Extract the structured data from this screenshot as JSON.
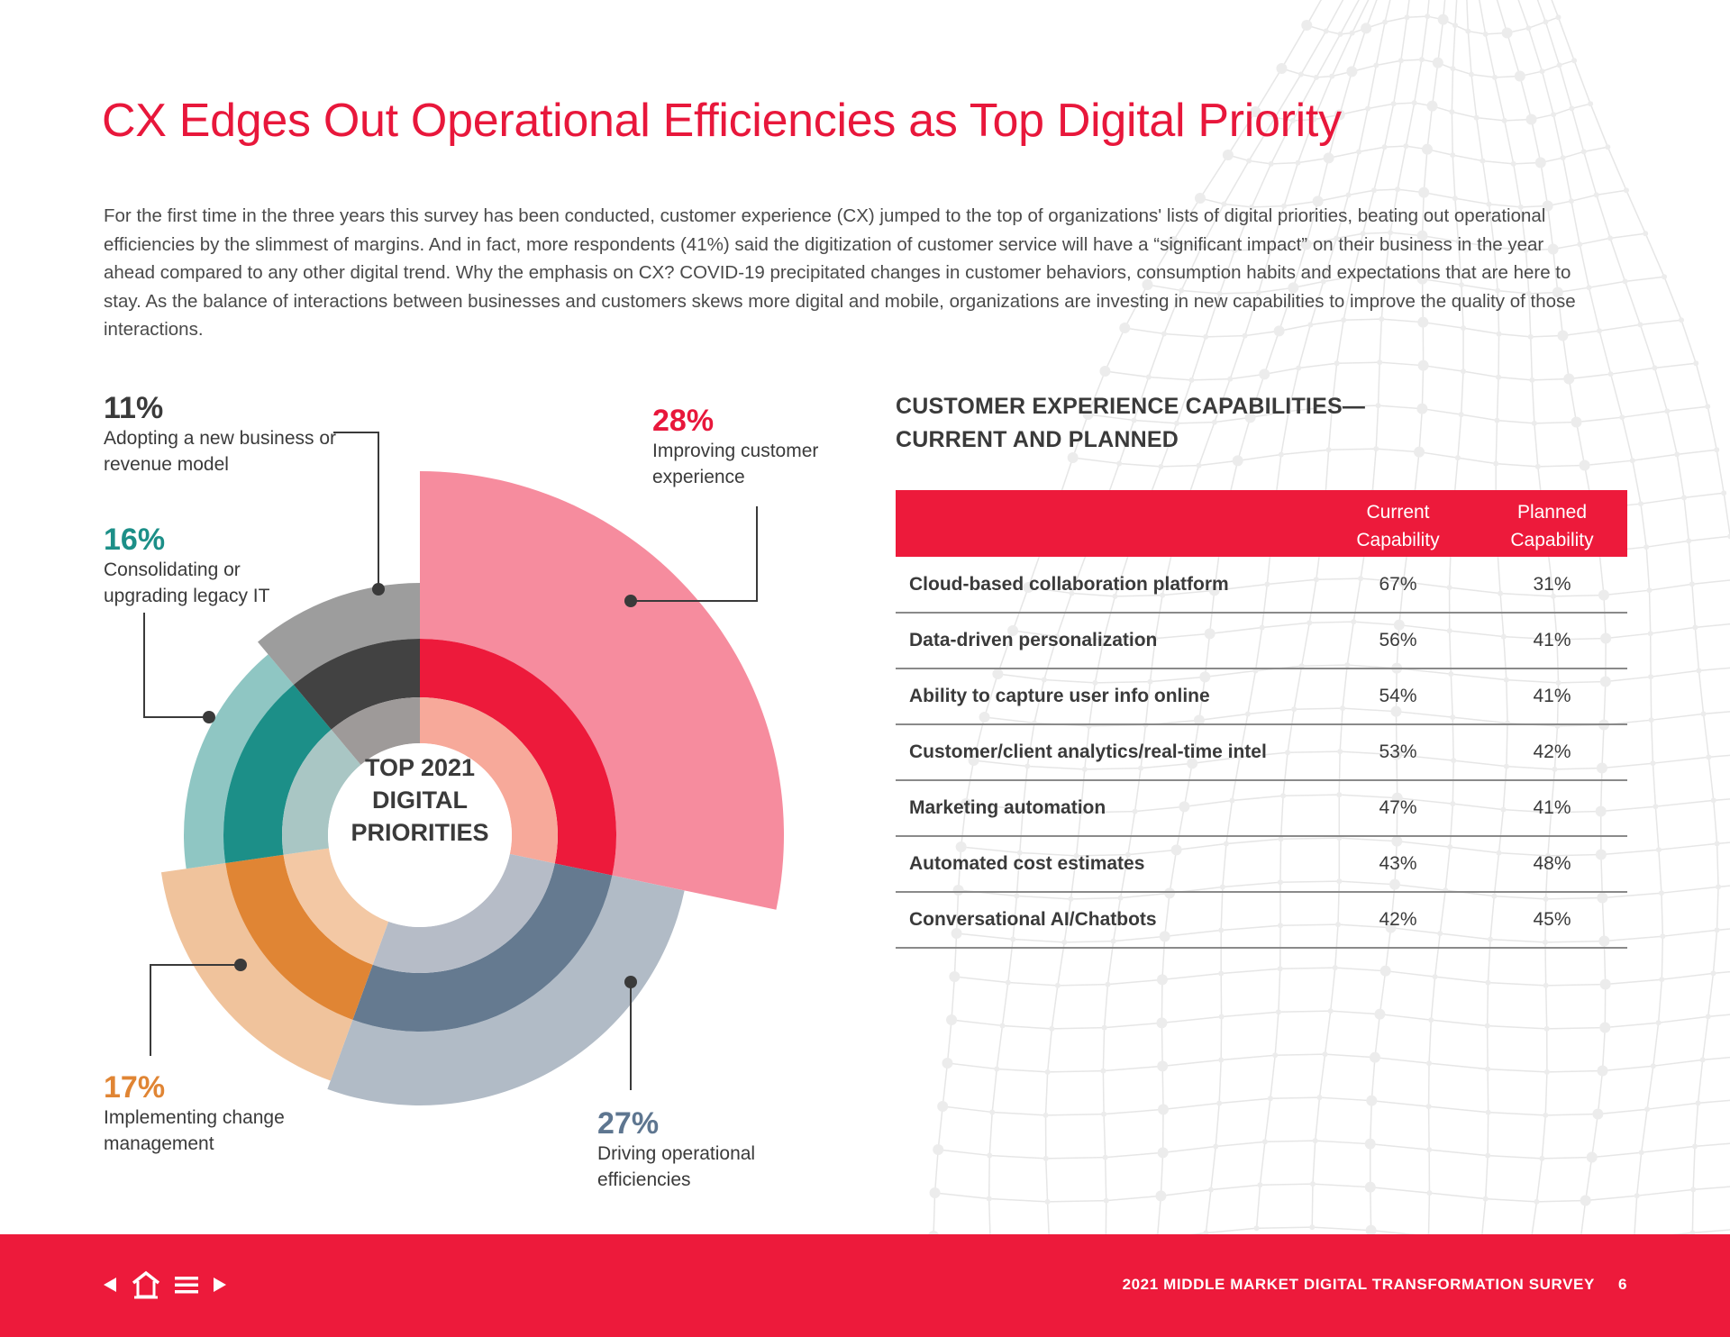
{
  "page": {
    "title": "CX Edges Out Operational Efficiencies as Top Digital Priority",
    "intro": "For the first time in the three years this survey has been conducted, customer experience (CX) jumped to the top of organizations' lists of digital priorities, beating out operational efficiencies by the slimmest of margins. And in fact, more respondents (41%) said the digitization of customer service will have a “significant impact” on their business in the year ahead compared to any other digital trend. Why the emphasis on CX? COVID-19 precipitated changes in customer behaviors, consumption habits and expectations that are here to stay. As the balance of interactions between businesses and customers skews more digital and mobile, organizations are investing in new capabilities to improve the quality of those interactions.",
    "colors": {
      "brand_red": "#ED1A3B",
      "text_dark": "#3a3a3a"
    }
  },
  "chart_data": {
    "type": "pie",
    "title": "TOP 2021 DIGITAL PRIORITIES",
    "center_label_lines": [
      "TOP 2021",
      "DIGITAL",
      "PRIORITIES"
    ],
    "order": "clockwise from top",
    "categories": [
      "Improving customer experience",
      "Driving operational efficiencies",
      "Implementing change management",
      "Consolidating or upgrading legacy IT",
      "Adopting a new business or revenue model"
    ],
    "values": [
      28,
      27,
      17,
      16,
      11
    ],
    "labels": [
      "28%",
      "27%",
      "17%",
      "16%",
      "11%"
    ],
    "colors": {
      "outer": [
        "#F68C9E",
        "#B1BBC6",
        "#F0C39C",
        "#8FC6C3",
        "#9D9D9D"
      ],
      "middle": [
        "#ED1A3B",
        "#657A90",
        "#E08534",
        "#1C8F88",
        "#424242"
      ],
      "inner": [
        "#F7A99A",
        "#B6BCC7",
        "#F3C8A4",
        "#A9C6C4",
        "#9E9A99"
      ],
      "label": [
        "#E8173B",
        "#5E7690",
        "#E08534",
        "#1C8F88",
        "#3a3a3a"
      ]
    }
  },
  "table": {
    "title_lines": [
      "CUSTOMER EXPERIENCE CAPABILITIES—",
      "CURRENT AND PLANNED"
    ],
    "headers": {
      "name": "",
      "current": [
        "Current",
        "Capability"
      ],
      "planned": [
        "Planned",
        "Capability"
      ]
    },
    "rows": [
      {
        "name": "Cloud-based collaboration platform",
        "current": "67%",
        "planned": "31%"
      },
      {
        "name": "Data-driven personalization",
        "current": "56%",
        "planned": "41%"
      },
      {
        "name": "Ability to capture user info online",
        "current": "54%",
        "planned": "41%"
      },
      {
        "name": "Customer/client analytics/real-time intel",
        "current": "53%",
        "planned": "42%"
      },
      {
        "name": "Marketing automation",
        "current": "47%",
        "planned": "41%"
      },
      {
        "name": "Automated cost estimates",
        "current": "43%",
        "planned": "48%"
      },
      {
        "name": "Conversational AI/Chatbots",
        "current": "42%",
        "planned": "45%"
      }
    ]
  },
  "footer": {
    "title": "2021 MIDDLE MARKET DIGITAL TRANSFORMATION SURVEY",
    "page_number": "6",
    "nav_icons": [
      "previous-arrow-icon",
      "home-icon",
      "menu-icon",
      "next-arrow-icon"
    ]
  }
}
